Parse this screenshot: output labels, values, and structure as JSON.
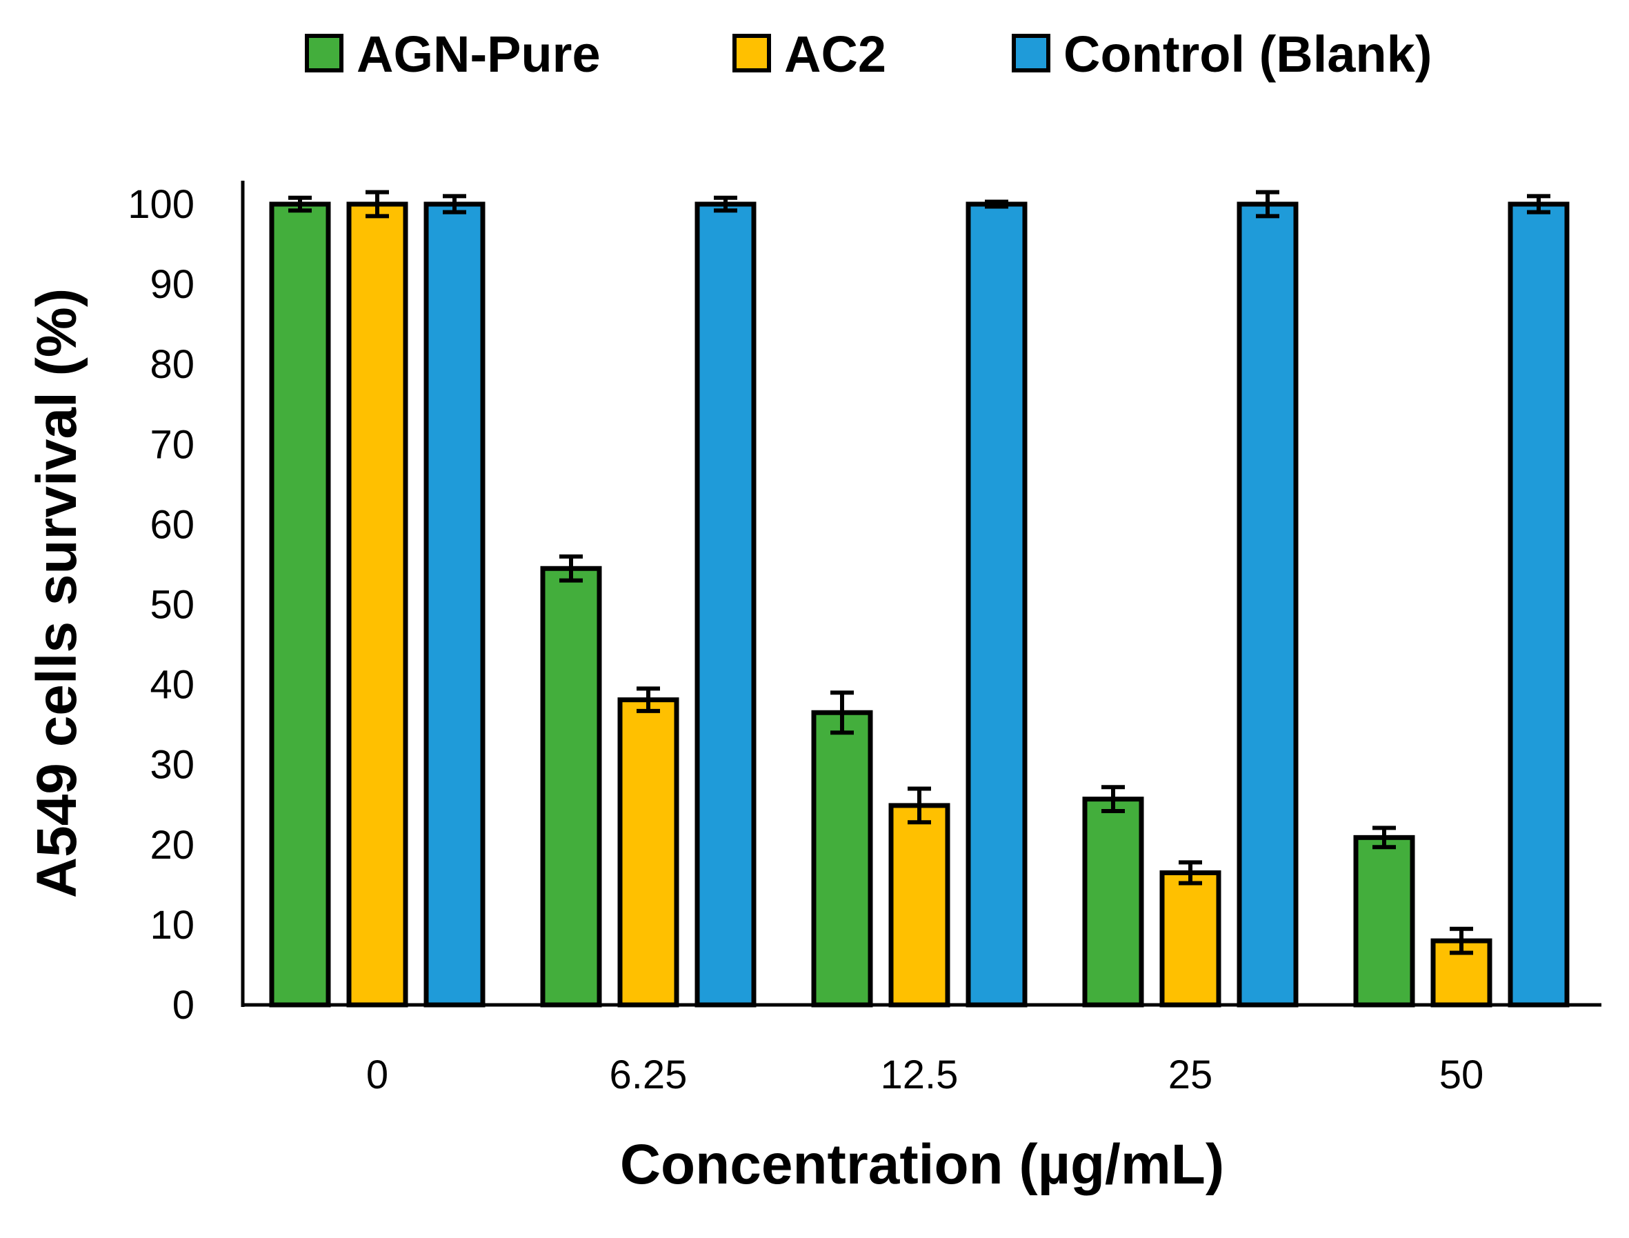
{
  "chart_data": {
    "type": "bar",
    "title": "",
    "xlabel": "Concentration (µg/mL)",
    "ylabel": "A549  cells survival (%)",
    "ylim": [
      0,
      100
    ],
    "yticks": [
      0,
      10,
      20,
      30,
      40,
      50,
      60,
      70,
      80,
      90,
      100
    ],
    "categories": [
      "0",
      "6.25",
      "12.5",
      "25",
      "50"
    ],
    "legend_position": "top",
    "grid": false,
    "series": [
      {
        "name": "AGN-Pure",
        "color": "#43ae3c",
        "values": [
          100,
          54.5,
          36.5,
          25.7,
          20.9
        ],
        "errors": [
          0.8,
          1.5,
          2.5,
          1.5,
          1.2
        ]
      },
      {
        "name": "AC2",
        "color": "#ffc000",
        "values": [
          100,
          38.1,
          24.9,
          16.5,
          8.0
        ],
        "errors": [
          1.5,
          1.4,
          2.1,
          1.3,
          1.5
        ]
      },
      {
        "name": "Control (Blank)",
        "color": "#1f9bd9",
        "values": [
          100,
          100,
          100,
          100,
          100
        ],
        "errors": [
          1.0,
          0.8,
          0.3,
          1.5,
          1.0
        ]
      }
    ]
  }
}
